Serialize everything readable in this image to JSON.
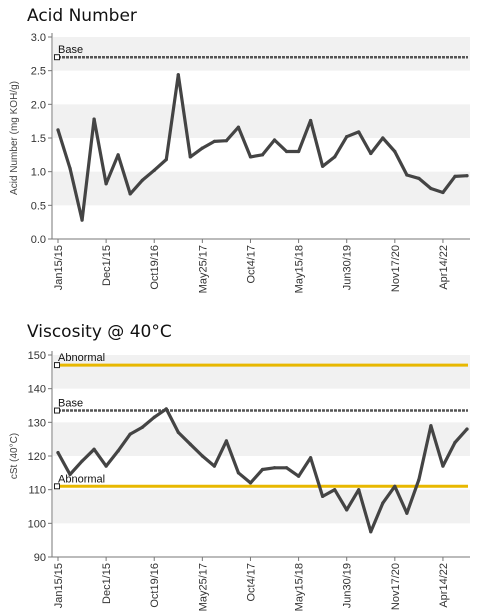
{
  "chart_data": [
    {
      "type": "line",
      "title": "Acid Number",
      "ylabel": "Acid Number (mg KOH/g)",
      "ylim": [
        0,
        3.0
      ],
      "yticks": [
        "0.0",
        "0.5",
        "1.0",
        "1.5",
        "2.0",
        "2.5",
        "3.0"
      ],
      "ytick_values": [
        0,
        0.5,
        1.0,
        1.5,
        2.0,
        2.5,
        3.0
      ],
      "xtick_labels": [
        "Jan15/15",
        "Dec1/15",
        "Oct19/16",
        "May25/17",
        "Oct4/17",
        "May15/18",
        "Jun30/19",
        "Nov17/20",
        "Apr14/22"
      ],
      "xtick_indices": [
        0,
        4,
        8,
        12,
        16,
        20,
        24,
        28,
        32
      ],
      "grid": "horizontal bands",
      "reference_lines": [
        {
          "label": "Base",
          "value": 2.7,
          "color": "#555555",
          "style": "dashed"
        }
      ],
      "series": [
        {
          "color": "#444444",
          "values": [
            1.62,
            1.05,
            0.28,
            1.78,
            0.82,
            1.25,
            0.67,
            0.87,
            1.02,
            1.18,
            2.44,
            1.22,
            1.35,
            1.45,
            1.46,
            1.66,
            1.22,
            1.25,
            1.47,
            1.3,
            1.3,
            1.76,
            1.08,
            1.22,
            1.52,
            1.59,
            1.27,
            1.5,
            1.3,
            0.95,
            0.9,
            0.75,
            0.69,
            0.93,
            0.94
          ]
        }
      ]
    },
    {
      "type": "line",
      "title": "Viscosity @ 40°C",
      "ylabel": "cSt (40°C)",
      "ylim": [
        90,
        150
      ],
      "yticks": [
        "90",
        "100",
        "110",
        "120",
        "130",
        "140",
        "150"
      ],
      "ytick_values": [
        90,
        100,
        110,
        120,
        130,
        140,
        150
      ],
      "xtick_labels": [
        "Jan15/15",
        "Dec1/15",
        "Oct19/16",
        "May25/17",
        "Oct4/17",
        "May15/18",
        "Jun30/19",
        "Nov17/20",
        "Apr14/22"
      ],
      "xtick_indices": [
        0,
        4,
        8,
        12,
        16,
        20,
        24,
        28,
        32
      ],
      "grid": "horizontal bands",
      "reference_lines": [
        {
          "label": "Abnormal",
          "value": 147,
          "color": "#e8b800",
          "style": "solid"
        },
        {
          "label": "Base",
          "value": 133.5,
          "color": "#555555",
          "style": "dashed"
        },
        {
          "label": "Abnormal",
          "value": 111,
          "color": "#e8b800",
          "style": "solid"
        }
      ],
      "series": [
        {
          "color": "#444444",
          "values": [
            121,
            114.5,
            118.5,
            122,
            117,
            121.5,
            126.5,
            128.5,
            131.5,
            134,
            127,
            123.5,
            120,
            117,
            124.5,
            115,
            112,
            116,
            116.5,
            116.5,
            114,
            119.5,
            108,
            110,
            104,
            110,
            97.5,
            106,
            111,
            103,
            113,
            129,
            117,
            124,
            128
          ]
        }
      ]
    }
  ]
}
